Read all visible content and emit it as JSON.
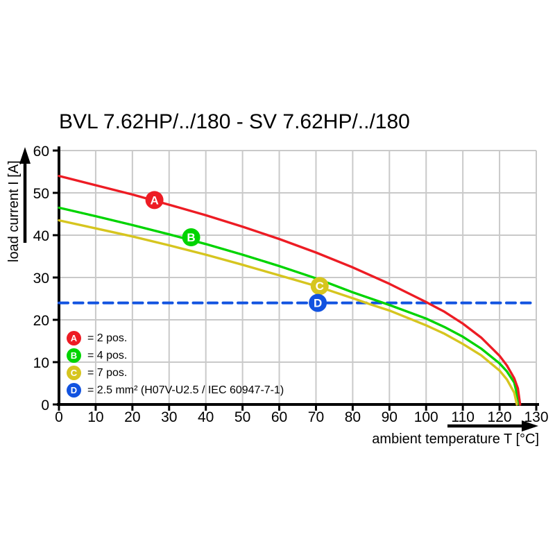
{
  "title": "BVL 7.62HP/../180 - SV 7.62HP/../180",
  "chart_data": {
    "type": "line",
    "title": "BVL 7.62HP/../180 - SV 7.62HP/../180",
    "xlabel": "ambient temperature T [°C]",
    "ylabel": "load current I [A]",
    "xlim": [
      0,
      130
    ],
    "ylim": [
      0,
      60
    ],
    "xticks": [
      0,
      10,
      20,
      30,
      40,
      50,
      60,
      70,
      80,
      90,
      100,
      110,
      120,
      130
    ],
    "yticks": [
      0,
      10,
      20,
      30,
      40,
      50,
      60
    ],
    "grid": true,
    "legend_position": "inside-lower-left",
    "colors": {
      "grid": "#c9c9c9",
      "axis": "#000000",
      "marker_letter": "#ffffff"
    },
    "series": [
      {
        "id": "A",
        "label": "2 pos.",
        "color": "#ed1c24",
        "style": "solid",
        "marker": {
          "letter": "A",
          "x": 26,
          "y": 48.3
        },
        "points": [
          [
            0,
            54
          ],
          [
            10,
            51.8
          ],
          [
            20,
            49.6
          ],
          [
            30,
            47.2
          ],
          [
            40,
            44.7
          ],
          [
            50,
            42.0
          ],
          [
            60,
            39.1
          ],
          [
            70,
            35.9
          ],
          [
            80,
            32.4
          ],
          [
            90,
            28.5
          ],
          [
            100,
            24.2
          ],
          [
            105,
            21.9
          ],
          [
            110,
            19.1
          ],
          [
            115,
            15.8
          ],
          [
            120,
            11.5
          ],
          [
            122,
            9.2
          ],
          [
            124,
            6.2
          ],
          [
            125,
            3.8
          ],
          [
            125.6,
            0
          ]
        ]
      },
      {
        "id": "B",
        "label": "4 pos.",
        "color": "#00d400",
        "style": "solid",
        "marker": {
          "letter": "B",
          "x": 36,
          "y": 39.5
        },
        "points": [
          [
            0,
            46.5
          ],
          [
            10,
            44.5
          ],
          [
            20,
            42.4
          ],
          [
            30,
            40.2
          ],
          [
            40,
            37.9
          ],
          [
            50,
            35.4
          ],
          [
            60,
            32.7
          ],
          [
            70,
            29.8
          ],
          [
            80,
            26.5
          ],
          [
            90,
            23.5
          ],
          [
            100,
            20.3
          ],
          [
            105,
            18.3
          ],
          [
            110,
            16.0
          ],
          [
            115,
            13.2
          ],
          [
            120,
            9.7
          ],
          [
            122,
            7.8
          ],
          [
            124,
            5.2
          ],
          [
            125.4,
            0
          ]
        ]
      },
      {
        "id": "C",
        "label": "7 pos.",
        "color": "#d6c51f",
        "style": "solid",
        "marker": {
          "letter": "C",
          "x": 71,
          "y": 28
        },
        "points": [
          [
            0,
            43.5
          ],
          [
            10,
            41.6
          ],
          [
            20,
            39.7
          ],
          [
            30,
            37.6
          ],
          [
            40,
            35.4
          ],
          [
            50,
            33.0
          ],
          [
            60,
            30.5
          ],
          [
            70,
            28.0
          ],
          [
            80,
            25.1
          ],
          [
            85,
            23.6
          ],
          [
            90,
            22.2
          ],
          [
            100,
            18.7
          ],
          [
            105,
            16.7
          ],
          [
            110,
            14.3
          ],
          [
            115,
            11.6
          ],
          [
            120,
            8.0
          ],
          [
            122,
            5.9
          ],
          [
            124,
            2.8
          ],
          [
            124.7,
            0
          ]
        ]
      },
      {
        "id": "D",
        "label": "2.5 mm² (H07V-U2.5 / IEC 60947-7-1)",
        "color": "#1253e0",
        "style": "dashed",
        "marker": {
          "letter": "D",
          "x": 70.5,
          "y": 24
        },
        "points": [
          [
            0,
            24
          ],
          [
            130,
            24
          ]
        ]
      }
    ],
    "legend": [
      {
        "letter": "A",
        "color": "#ed1c24",
        "text": "= 2 pos."
      },
      {
        "letter": "B",
        "color": "#00d400",
        "text": "= 4 pos."
      },
      {
        "letter": "C",
        "color": "#d6c51f",
        "text": "= 7 pos."
      },
      {
        "letter": "D",
        "color": "#1253e0",
        "text": "= 2.5 mm² (H07V-U2.5 / IEC 60947-7-1)"
      }
    ]
  }
}
